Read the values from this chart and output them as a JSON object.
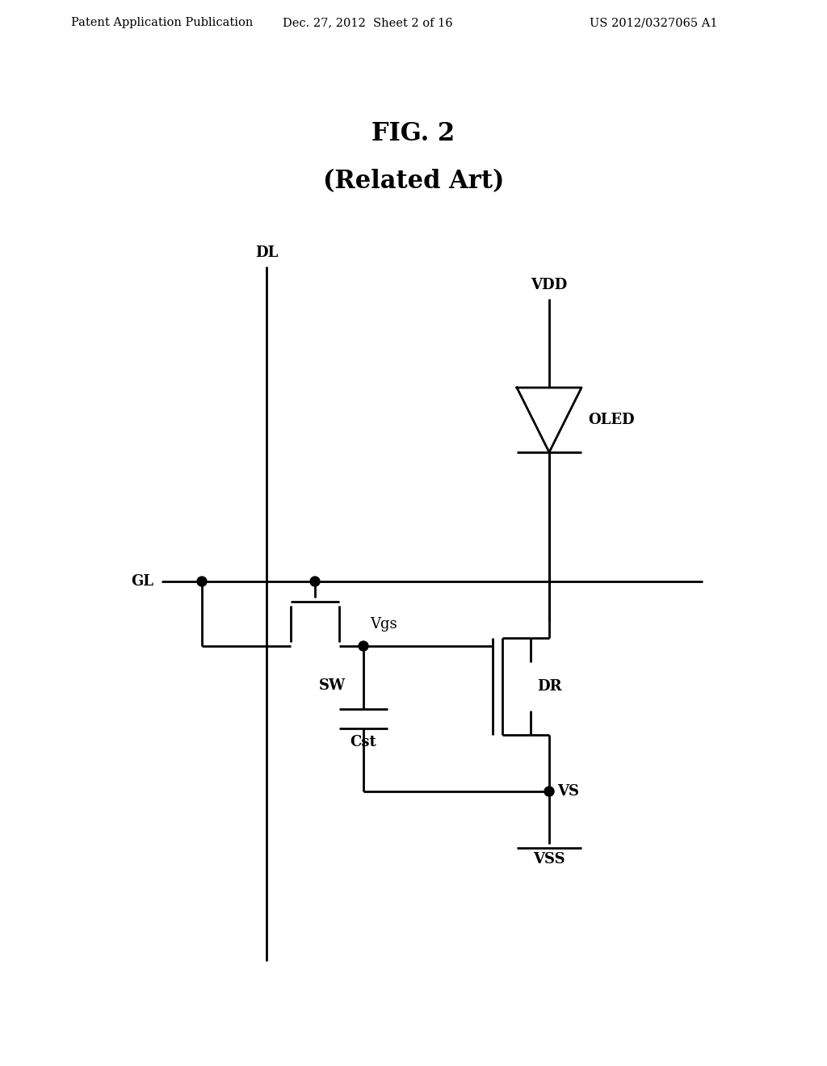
{
  "title": "FIG. 2",
  "subtitle": "(Related Art)",
  "header_left": "Patent Application Publication",
  "header_mid": "Dec. 27, 2012  Sheet 2 of 16",
  "header_right": "US 2012/0327065 A1",
  "bg_color": "#ffffff",
  "line_color": "#000000",
  "lw": 2.0,
  "font_size_header": 10.5,
  "font_size_title": 22,
  "font_size_label": 13,
  "font_size_comp": 12
}
